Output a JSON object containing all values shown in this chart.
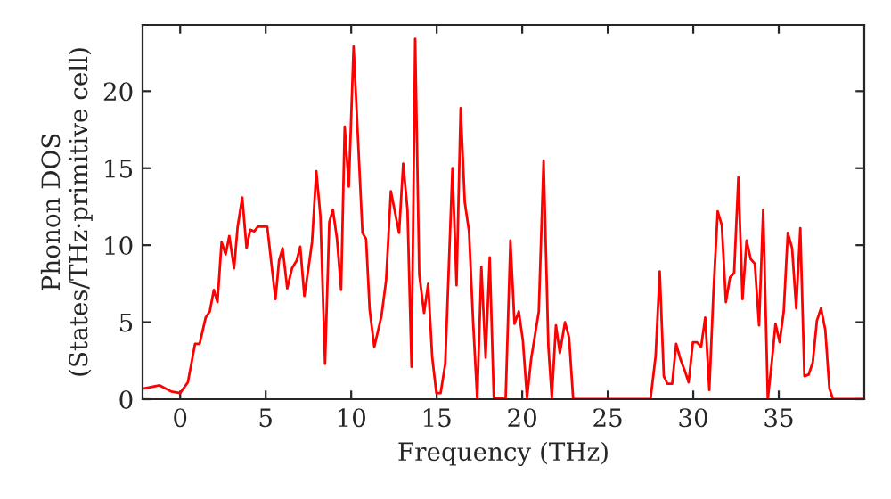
{
  "chart_data": {
    "type": "line",
    "xlabel": "Frequency (THz)",
    "ylabel": "Phonon DOS\n(States/THz·primitive cell)",
    "x": [
      -2.1,
      -1.2,
      -0.52,
      0.0,
      0.45,
      0.87,
      1.14,
      1.49,
      1.73,
      1.97,
      2.18,
      2.42,
      2.66,
      2.87,
      3.15,
      3.36,
      3.63,
      3.88,
      4.09,
      4.33,
      4.54,
      5.09,
      5.57,
      5.78,
      5.99,
      6.26,
      6.54,
      6.81,
      7.02,
      7.26,
      7.5,
      7.71,
      7.96,
      8.2,
      8.47,
      8.72,
      8.93,
      9.17,
      9.41,
      9.62,
      9.86,
      10.14,
      10.38,
      10.66,
      10.87,
      11.08,
      11.35,
      11.77,
      12.04,
      12.32,
      12.8,
      13.04,
      13.29,
      13.53,
      13.74,
      13.98,
      14.26,
      14.5,
      14.74,
      14.98,
      15.23,
      15.5,
      15.92,
      16.16,
      16.4,
      16.64,
      16.89,
      17.13,
      17.37,
      17.61,
      17.86,
      18.1,
      18.34,
      19.03,
      19.31,
      19.55,
      19.8,
      20.04,
      20.28,
      20.52,
      20.97,
      21.25,
      21.53,
      21.73,
      21.97,
      22.2,
      22.5,
      22.74,
      22.98,
      27.5,
      27.8,
      28.04,
      28.28,
      28.49,
      28.77,
      29.0,
      29.25,
      29.49,
      29.73,
      29.98,
      30.22,
      30.46,
      30.7,
      30.94,
      31.18,
      31.43,
      31.67,
      31.91,
      32.15,
      32.39,
      32.64,
      32.88,
      33.12,
      33.36,
      33.6,
      33.85,
      34.09,
      34.36,
      34.61,
      34.81,
      35.05,
      35.29,
      35.53,
      35.78,
      36.02,
      36.26,
      36.5,
      36.75,
      36.99,
      37.23,
      37.47,
      37.72,
      37.96,
      38.17,
      39.97
    ],
    "series": [
      {
        "color": "#ff0000",
        "values": [
          0.7,
          0.9,
          0.5,
          0.4,
          1.1,
          3.6,
          3.6,
          5.3,
          5.7,
          7.1,
          6.3,
          10.2,
          9.4,
          10.6,
          8.5,
          11.2,
          13.1,
          9.8,
          11.0,
          10.9,
          11.2,
          11.2,
          6.5,
          9.0,
          9.8,
          7.2,
          8.5,
          9.0,
          9.9,
          6.7,
          8.5,
          10.2,
          14.8,
          11.9,
          2.3,
          11.5,
          12.3,
          10.4,
          7.1,
          17.7,
          13.8,
          22.9,
          17.3,
          10.8,
          10.4,
          5.8,
          3.4,
          5.4,
          7.7,
          13.5,
          10.8,
          15.3,
          12.3,
          2.1,
          23.4,
          8.1,
          5.6,
          7.5,
          2.7,
          0.4,
          0.4,
          2.3,
          15.0,
          7.4,
          18.9,
          12.8,
          10.9,
          5.0,
          0,
          8.6,
          2.7,
          9.2,
          0.1,
          0,
          10.3,
          4.9,
          5.7,
          3.8,
          0.1,
          2.6,
          5.7,
          15.5,
          3.4,
          0.1,
          4.8,
          3.0,
          5.0,
          4.0,
          0,
          0,
          2.8,
          8.3,
          1.5,
          1.0,
          1.0,
          3.6,
          2.6,
          1.9,
          1.1,
          3.7,
          3.7,
          3.4,
          5.3,
          0.6,
          6.9,
          12.2,
          11.3,
          6.3,
          7.9,
          8.2,
          14.4,
          6.5,
          10.3,
          9.1,
          8.8,
          4.8,
          12.3,
          0,
          2.6,
          4.9,
          3.7,
          5.7,
          10.8,
          9.8,
          5.9,
          11.1,
          1.5,
          1.6,
          2.4,
          5.1,
          5.9,
          4.5,
          0.7,
          0,
          0
        ]
      }
    ],
    "xlim": [
      -2.2,
      40
    ],
    "ylim": [
      0,
      24.3
    ],
    "xticks": [
      0,
      5,
      10,
      15,
      20,
      25,
      30,
      35
    ],
    "yticks": [
      0,
      5,
      10,
      15,
      20
    ],
    "grid": false,
    "legend": false
  }
}
